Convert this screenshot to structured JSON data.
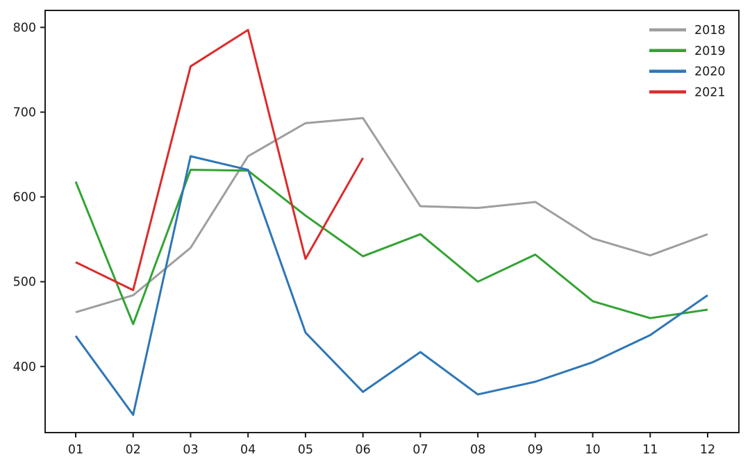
{
  "chart_data": {
    "type": "line",
    "title": "",
    "xlabel": "",
    "ylabel": "",
    "categories": [
      "01",
      "02",
      "03",
      "04",
      "05",
      "06",
      "07",
      "08",
      "09",
      "10",
      "11",
      "12"
    ],
    "series": [
      {
        "name": "2018",
        "color": "#9e9e9e",
        "values": [
          464,
          484,
          540,
          648,
          687,
          693,
          589,
          587,
          594,
          551,
          531,
          556
        ]
      },
      {
        "name": "2019",
        "color": "#33a333",
        "values": [
          618,
          450,
          632,
          631,
          578,
          530,
          556,
          500,
          532,
          477,
          457,
          467
        ]
      },
      {
        "name": "2020",
        "color": "#2e76b6",
        "values": [
          436,
          343,
          648,
          632,
          440,
          370,
          417,
          367,
          382,
          405,
          437,
          484
        ]
      },
      {
        "name": "2021",
        "color": "#db2b2b",
        "values": [
          523,
          490,
          754,
          797,
          527,
          646,
          null,
          null,
          null,
          null,
          null,
          null
        ]
      }
    ],
    "yticks": [
      400,
      500,
      600,
      700,
      800
    ],
    "ylim": [
      322,
      820
    ],
    "grid": false,
    "legend_position": "upper right",
    "legend_frame": false,
    "axis_color": "#1c1c1c",
    "background_color": "#ffffff",
    "line_width": 3
  }
}
